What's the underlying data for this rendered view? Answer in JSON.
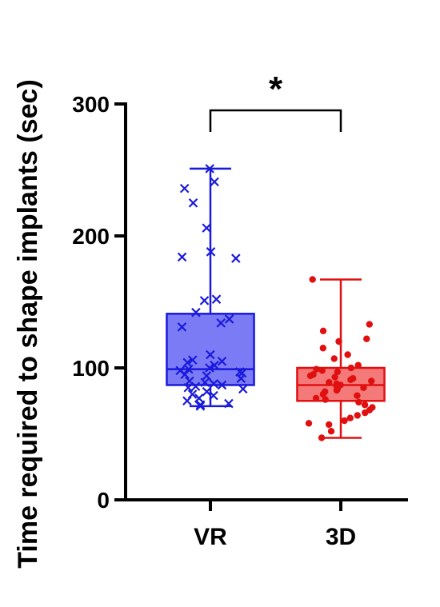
{
  "chart_data": {
    "type": "box",
    "ylabel": "Time required to shape implants (sec)",
    "ylim": [
      0,
      300
    ],
    "yticks": [
      0,
      100,
      200,
      300
    ],
    "categories": [
      "VR",
      "3D"
    ],
    "grid": false,
    "series": [
      {
        "name": "VR",
        "color": "#1a1adb",
        "fill": "#7b7bf5",
        "marker": "x",
        "min": 71,
        "q1": 87,
        "median": 99,
        "q3": 141,
        "max": 251,
        "points": [
          251,
          241,
          236,
          225,
          206,
          188,
          184,
          183,
          152,
          151,
          142,
          137,
          134,
          131,
          110,
          106,
          105,
          104,
          102,
          100,
          99,
          98,
          97,
          96,
          95,
          94,
          92,
          90,
          89,
          88,
          87,
          86,
          85,
          84,
          82,
          80,
          79,
          77,
          75,
          73,
          72,
          71
        ]
      },
      {
        "name": "3D",
        "color": "#e01010",
        "fill": "#f47a7a",
        "marker": "circle",
        "min": 47,
        "q1": 75,
        "median": 87,
        "q3": 100,
        "max": 167,
        "points": [
          167,
          133,
          128,
          122,
          120,
          115,
          110,
          107,
          102,
          100,
          99,
          98,
          97,
          95,
          94,
          93,
          92,
          91,
          90,
          89,
          88,
          87,
          86,
          85,
          84,
          83,
          82,
          80,
          79,
          77,
          76,
          74,
          72,
          70,
          68,
          66,
          64,
          62,
          60,
          58,
          57,
          52,
          47
        ]
      }
    ],
    "annotations": [
      {
        "text": "*",
        "between": [
          "VR",
          "3D"
        ]
      }
    ]
  }
}
